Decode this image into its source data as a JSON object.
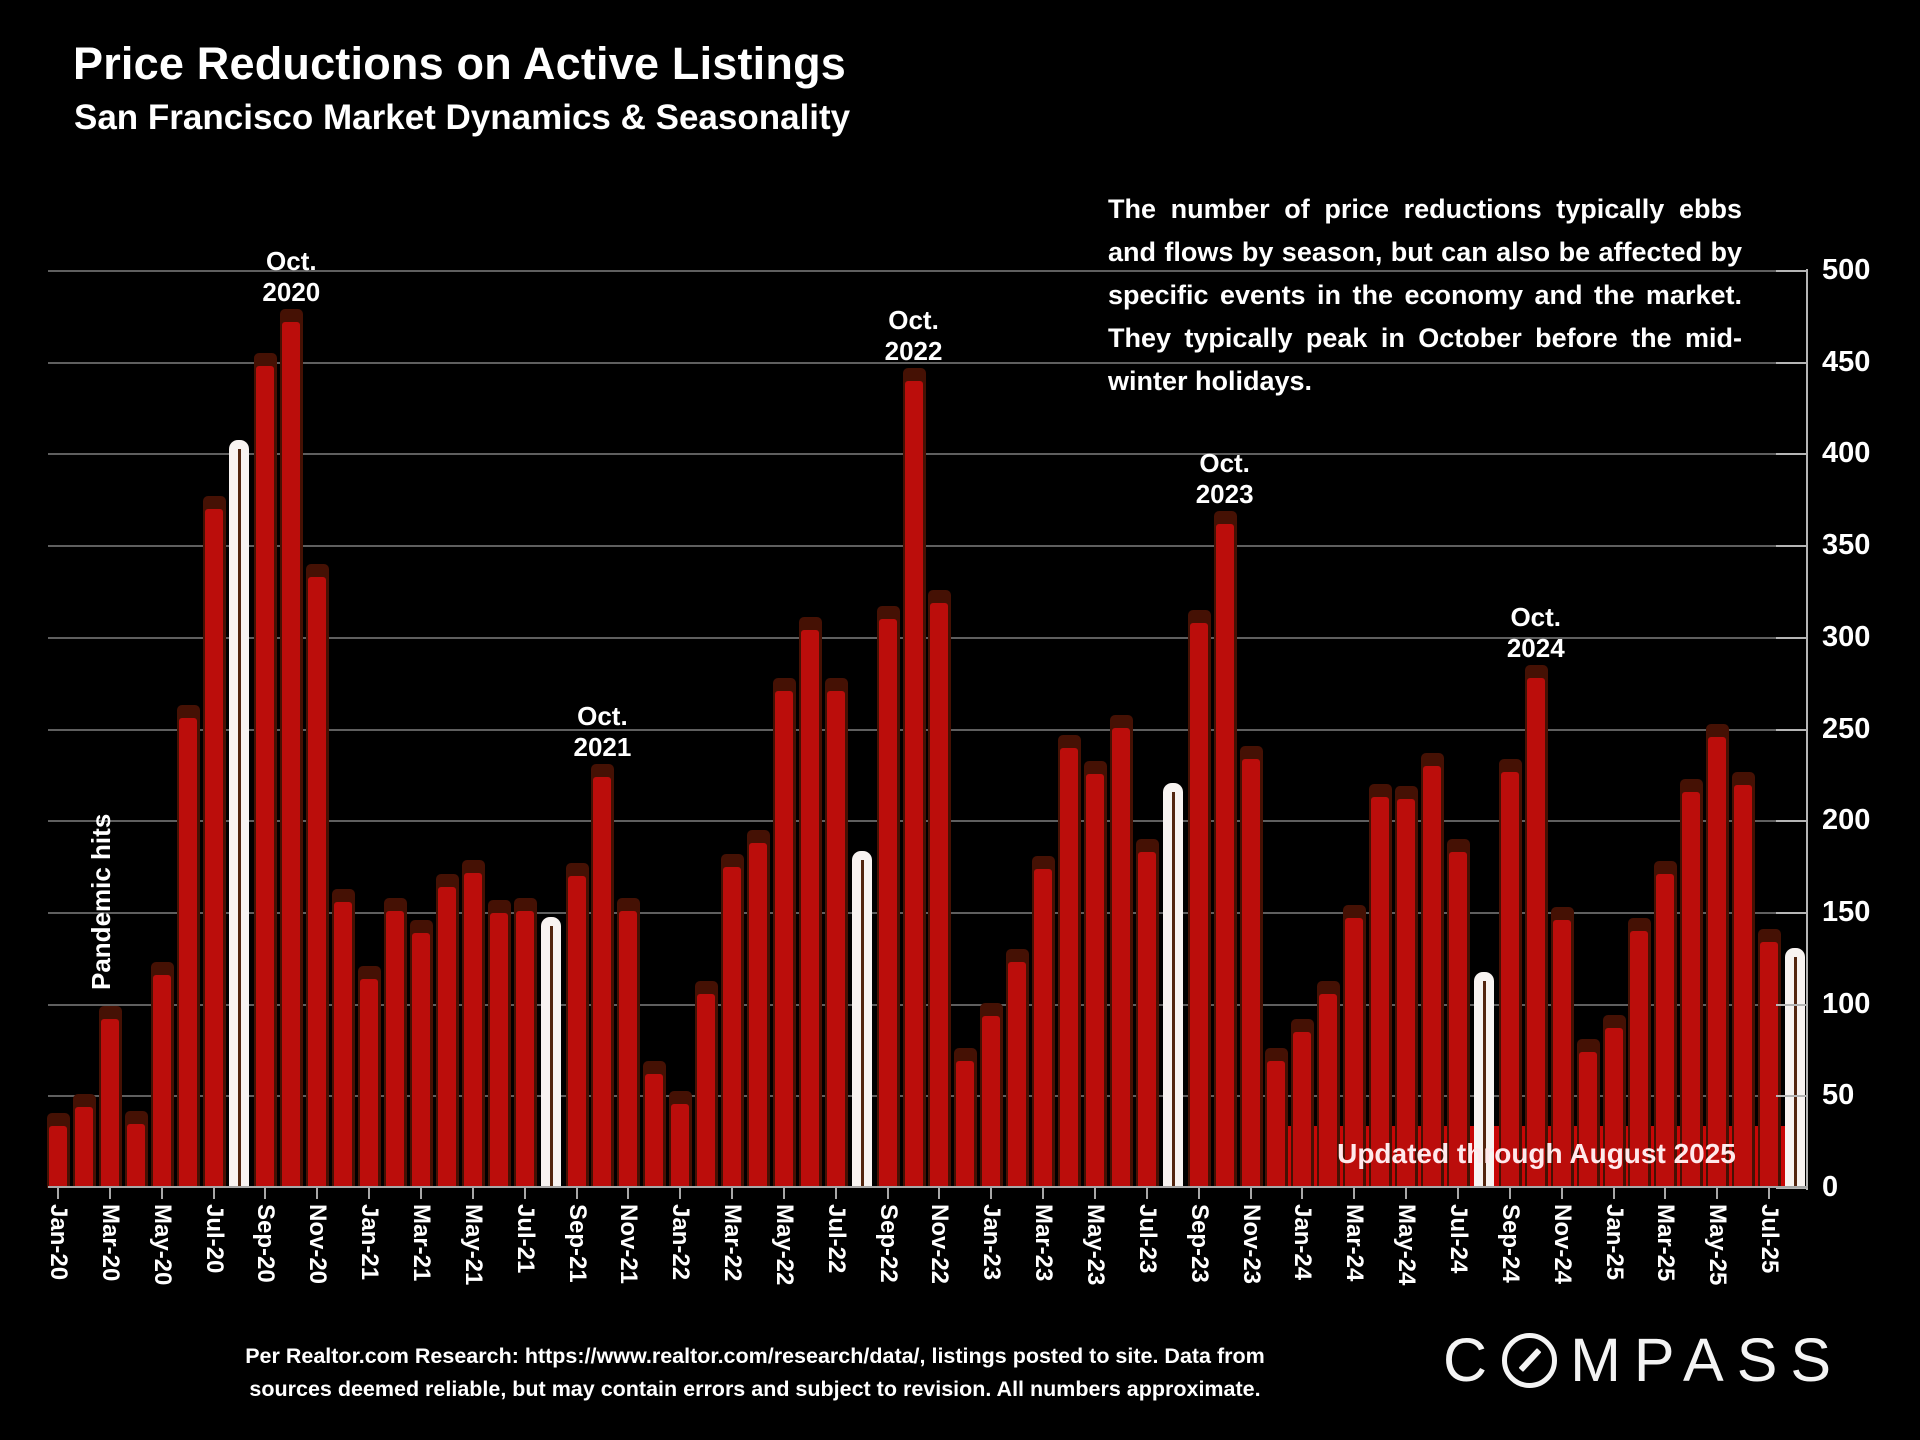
{
  "title": "Price Reductions on Active Listings",
  "subtitle": "San Francisco Market Dynamics & Seasonality",
  "annotation": "The number of price reductions typically ebbs and flows by season, but can also be affected by specific events in the economy and the market. They typically peak in October before the mid-winter holidays.",
  "pandemic_label": "Pandemic hits",
  "banner": {
    "text": "Updated through August 2025"
  },
  "footer": {
    "line1": "Per Realtor.com Research:  https://www.realtor.com/research/data/, listings posted to site. Data from",
    "line2": "sources deemed reliable, but may contain errors and subject to revision. All numbers approximate."
  },
  "logo": {
    "text": "COMPASS"
  },
  "colors": {
    "background": "#000000",
    "bar_red": "#bb0d0b",
    "bar_shadow": "#451104",
    "highlight_white": "#f8f3f1",
    "banner_red": "#c80606",
    "gridline": "#5f5f5f"
  },
  "oct_annotations": [
    {
      "month": "Oct-20",
      "line1": "Oct.",
      "line2": "2020"
    },
    {
      "month": "Oct-21",
      "line1": "Oct.",
      "line2": "2021"
    },
    {
      "month": "Oct-22",
      "line1": "Oct.",
      "line2": "2022"
    },
    {
      "month": "Oct-23",
      "line1": "Oct.",
      "line2": "2023"
    },
    {
      "month": "Oct-24",
      "line1": "Oct.",
      "line2": "2024"
    }
  ],
  "chart_data": {
    "type": "bar",
    "title": "Price Reductions on Active Listings",
    "xlabel": "",
    "ylabel": "",
    "ylim": [
      0,
      500
    ],
    "y_tick_step": 50,
    "grid": true,
    "legend_position": "none",
    "x_axis_label_every": 2,
    "categories": [
      "Jan-20",
      "Feb-20",
      "Mar-20",
      "Apr-20",
      "May-20",
      "Jun-20",
      "Jul-20",
      "Aug-20",
      "Sep-20",
      "Oct-20",
      "Nov-20",
      "Dec-20",
      "Jan-21",
      "Feb-21",
      "Mar-21",
      "Apr-21",
      "May-21",
      "Jun-21",
      "Jul-21",
      "Aug-21",
      "Sep-21",
      "Oct-21",
      "Nov-21",
      "Dec-21",
      "Jan-22",
      "Feb-22",
      "Mar-22",
      "Apr-22",
      "May-22",
      "Jun-22",
      "Jul-22",
      "Aug-22",
      "Sep-22",
      "Oct-22",
      "Nov-22",
      "Dec-22",
      "Jan-23",
      "Feb-23",
      "Mar-23",
      "Apr-23",
      "May-23",
      "Jun-23",
      "Jul-23",
      "Aug-23",
      "Sep-23",
      "Oct-23",
      "Nov-23",
      "Dec-23",
      "Jan-24",
      "Feb-24",
      "Mar-24",
      "Apr-24",
      "May-24",
      "Jun-24",
      "Jul-24",
      "Aug-24",
      "Sep-24",
      "Oct-24",
      "Nov-24",
      "Dec-24",
      "Jan-25",
      "Feb-25",
      "Mar-25",
      "Apr-25",
      "May-25",
      "Jun-25",
      "Jul-25",
      "Aug-25"
    ],
    "values": [
      34,
      44,
      92,
      35,
      116,
      256,
      370,
      408,
      448,
      472,
      333,
      156,
      114,
      151,
      139,
      164,
      172,
      150,
      151,
      148,
      170,
      224,
      151,
      62,
      46,
      106,
      175,
      188,
      271,
      304,
      271,
      184,
      310,
      440,
      319,
      69,
      94,
      123,
      174,
      240,
      226,
      251,
      183,
      221,
      308,
      362,
      234,
      69,
      85,
      106,
      147,
      213,
      212,
      230,
      183,
      118,
      227,
      278,
      146,
      74,
      87,
      140,
      171,
      216,
      246,
      220,
      134,
      131
    ],
    "highlighted_categories": [
      "Aug-20",
      "Aug-21",
      "Aug-22",
      "Aug-23",
      "Aug-24",
      "Aug-25"
    ],
    "highlight_style": "white outlined bar with thin dark center line",
    "annotations": [
      "Pandemic hits (Mar-Apr 2020)",
      "Oct. 2020 peak",
      "Oct. 2021 peak",
      "Oct. 2022 peak",
      "Oct. 2023 peak",
      "Oct. 2024 peak",
      "Updated through August 2025"
    ]
  }
}
